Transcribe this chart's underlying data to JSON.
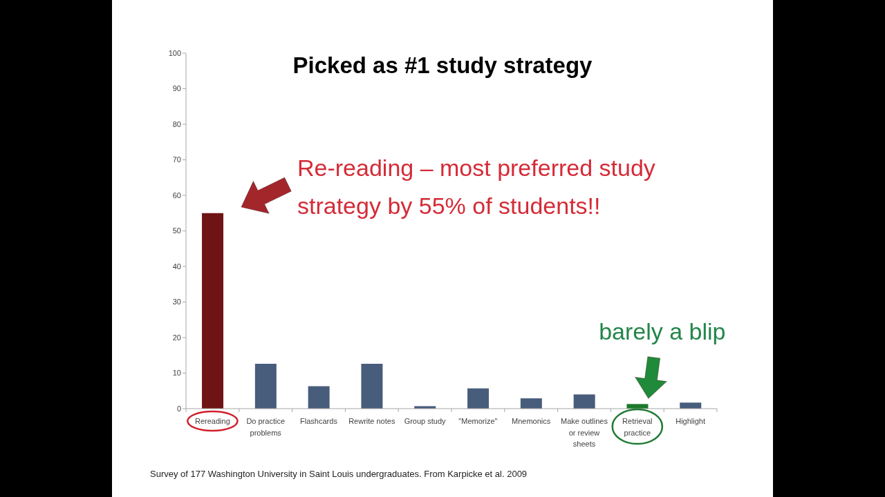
{
  "chart_data": {
    "type": "bar",
    "title": "Picked as #1 study strategy",
    "categories": [
      "Rereading",
      "Do practice problems",
      "Flashcards",
      "Rewrite notes",
      "Group study",
      "\"Memorize\"",
      "Mnemonics",
      "Make outlines or review sheets",
      "Retrieval practice",
      "Highlight"
    ],
    "values": [
      55,
      12.6,
      6.3,
      12.6,
      0.7,
      5.7,
      2.9,
      4.0,
      1.3,
      1.7
    ],
    "colors": [
      "#6e1414",
      "#485d7c",
      "#485d7c",
      "#485d7c",
      "#485d7c",
      "#485d7c",
      "#485d7c",
      "#485d7c",
      "#1b7a2a",
      "#485d7c"
    ],
    "ylim": [
      0,
      100
    ],
    "yticks": [
      0,
      10,
      20,
      30,
      40,
      50,
      60,
      70,
      80,
      90,
      100
    ],
    "annotations": [
      "Re-reading – most preferred study strategy by 55% of students!!",
      {
        "text": "barely a blip",
        "x": "Retrieval practice",
        "y": 1.3
      },
      "Survey of 177 Washington University in Saint Louis undergraduates. From Karpicke et al. 2009"
    ]
  }
}
